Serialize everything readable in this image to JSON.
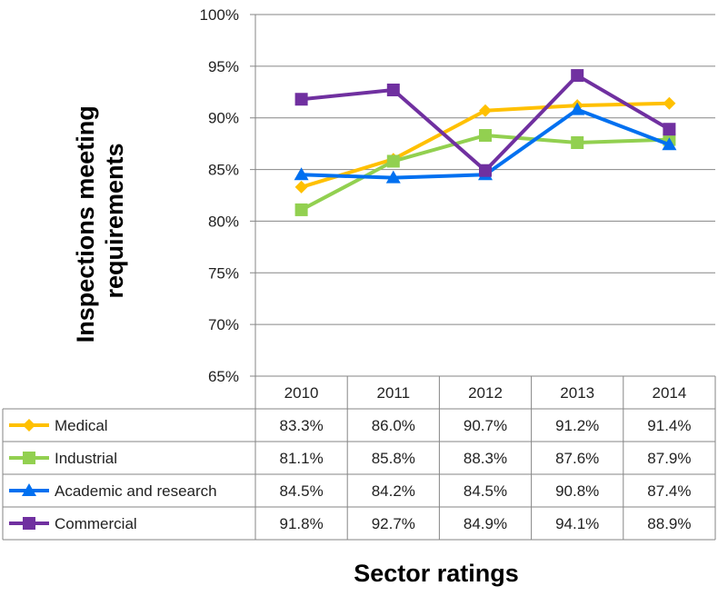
{
  "chart_data": {
    "type": "line",
    "title": "",
    "ylabel_lines": [
      "Inspections meeting",
      "requirements"
    ],
    "xlabel": "Sector ratings",
    "categories": [
      "2010",
      "2011",
      "2012",
      "2013",
      "2014"
    ],
    "ylim": [
      65,
      100
    ],
    "y_ticks": [
      65,
      70,
      75,
      80,
      85,
      90,
      95,
      100
    ],
    "y_tick_labels": [
      "65%",
      "70%",
      "75%",
      "80%",
      "85%",
      "90%",
      "95%",
      "100%"
    ],
    "grid": "horizontal",
    "legend": "data-table",
    "series": [
      {
        "name": "Medical",
        "color": "#FFC000",
        "marker": "diamond",
        "values": [
          83.3,
          86.0,
          90.7,
          91.2,
          91.4
        ],
        "labels": [
          "83.3%",
          "86.0%",
          "90.7%",
          "91.2%",
          "91.4%"
        ]
      },
      {
        "name": "Industrial",
        "color": "#92D050",
        "marker": "square",
        "values": [
          81.1,
          85.8,
          88.3,
          87.6,
          87.9
        ],
        "labels": [
          "81.1%",
          "85.8%",
          "88.3%",
          "87.6%",
          "87.9%"
        ]
      },
      {
        "name": "Academic and research",
        "color": "#0070F0",
        "marker": "triangle",
        "values": [
          84.5,
          84.2,
          84.5,
          90.8,
          87.4
        ],
        "labels": [
          "84.5%",
          "84.2%",
          "84.5%",
          "90.8%",
          "87.4%"
        ]
      },
      {
        "name": "Commercial",
        "color": "#7030A0",
        "marker": "square",
        "values": [
          91.8,
          92.7,
          84.9,
          94.1,
          88.9
        ],
        "labels": [
          "91.8%",
          "92.7%",
          "84.9%",
          "94.1%",
          "88.9%"
        ]
      }
    ]
  }
}
